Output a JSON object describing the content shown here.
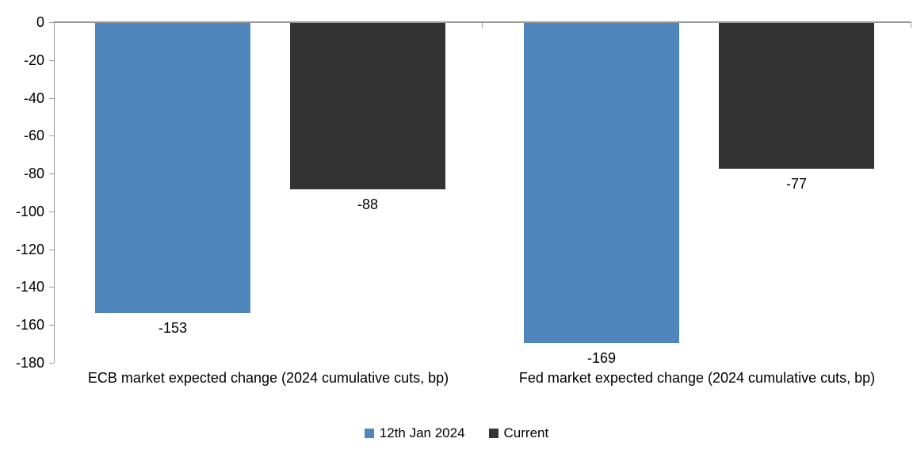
{
  "chart_data": {
    "type": "bar",
    "title": "",
    "xlabel": "",
    "ylabel": "",
    "categories": [
      "ECB market expected change (2024 cumulative cuts, bp)",
      "Fed market expected change (2024 cumulative cuts, bp)"
    ],
    "series": [
      {
        "name": "12th Jan 2024",
        "color": "#4E86BC",
        "values": [
          -153,
          -169
        ]
      },
      {
        "name": "Current",
        "color": "#333333",
        "values": [
          -88,
          -77
        ]
      }
    ],
    "ylim": [
      -180,
      0
    ],
    "yticks": [
      0,
      -20,
      -40,
      -60,
      -80,
      -100,
      -120,
      -140,
      -160,
      -180
    ],
    "grid": false,
    "data_labels": true,
    "legend_position": "bottom",
    "axis_color": "#999999",
    "text_color": "#000000"
  }
}
